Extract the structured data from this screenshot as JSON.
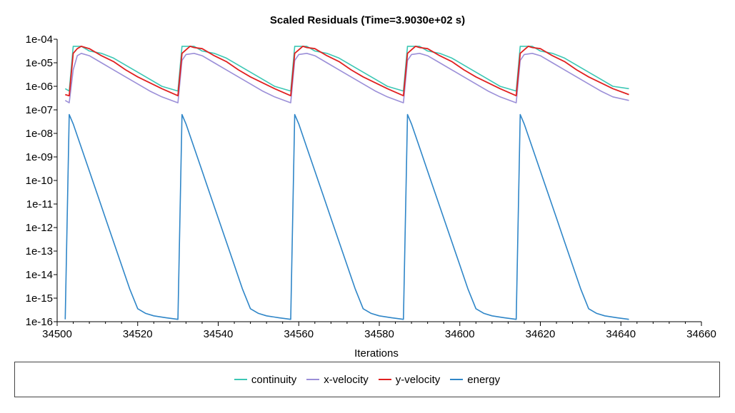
{
  "chart_data": {
    "type": "line",
    "title": "Scaled Residuals (Time=3.9030e+02 s)",
    "xlabel": "Iterations",
    "ylabel": "",
    "xlim": [
      34500,
      34660
    ],
    "ylim_exponent": [
      -16,
      -4
    ],
    "y_scale": "log",
    "x_ticks": [
      34500,
      34520,
      34540,
      34560,
      34580,
      34600,
      34620,
      34640,
      34660
    ],
    "y_ticks": [
      "1e-04",
      "1e-05",
      "1e-06",
      "1e-07",
      "1e-08",
      "1e-09",
      "1e-10",
      "1e-11",
      "1e-12",
      "1e-13",
      "1e-14",
      "1e-15",
      "1e-16"
    ],
    "grid": false,
    "legend_position": "bottom",
    "series": [
      {
        "name": "continuity",
        "color": "#3cc7b4",
        "points": [
          [
            34502,
            -6.1
          ],
          [
            34503,
            -6.2
          ],
          [
            34504,
            -4.3
          ],
          [
            34505,
            -4.3
          ],
          [
            34506,
            -4.3
          ],
          [
            34508,
            -4.5
          ],
          [
            34511,
            -4.6
          ],
          [
            34514,
            -4.8
          ],
          [
            34517,
            -5.1
          ],
          [
            34520,
            -5.4
          ],
          [
            34523,
            -5.7
          ],
          [
            34526,
            -6.0
          ],
          [
            34530,
            -6.2
          ],
          [
            34531,
            -4.3
          ],
          [
            34532,
            -4.3
          ],
          [
            34534,
            -4.3
          ],
          [
            34536,
            -4.5
          ],
          [
            34539,
            -4.6
          ],
          [
            34542,
            -4.8
          ],
          [
            34545,
            -5.1
          ],
          [
            34548,
            -5.4
          ],
          [
            34551,
            -5.7
          ],
          [
            34554,
            -6.0
          ],
          [
            34558,
            -6.2
          ],
          [
            34559,
            -4.3
          ],
          [
            34560,
            -4.3
          ],
          [
            34562,
            -4.3
          ],
          [
            34564,
            -4.5
          ],
          [
            34567,
            -4.6
          ],
          [
            34570,
            -4.8
          ],
          [
            34573,
            -5.1
          ],
          [
            34576,
            -5.4
          ],
          [
            34579,
            -5.7
          ],
          [
            34582,
            -6.0
          ],
          [
            34586,
            -6.2
          ],
          [
            34587,
            -4.3
          ],
          [
            34588,
            -4.3
          ],
          [
            34590,
            -4.3
          ],
          [
            34592,
            -4.5
          ],
          [
            34595,
            -4.6
          ],
          [
            34598,
            -4.8
          ],
          [
            34601,
            -5.1
          ],
          [
            34604,
            -5.4
          ],
          [
            34607,
            -5.7
          ],
          [
            34610,
            -6.0
          ],
          [
            34614,
            -6.2
          ],
          [
            34615,
            -4.3
          ],
          [
            34616,
            -4.3
          ],
          [
            34618,
            -4.3
          ],
          [
            34620,
            -4.5
          ],
          [
            34623,
            -4.6
          ],
          [
            34626,
            -4.8
          ],
          [
            34629,
            -5.1
          ],
          [
            34632,
            -5.4
          ],
          [
            34635,
            -5.7
          ],
          [
            34638,
            -6.0
          ],
          [
            34642,
            -6.1
          ]
        ]
      },
      {
        "name": "x-velocity",
        "color": "#9b8fd8",
        "points": [
          [
            34502,
            -6.6
          ],
          [
            34503,
            -6.7
          ],
          [
            34504,
            -5.3
          ],
          [
            34505,
            -4.7
          ],
          [
            34506,
            -4.6
          ],
          [
            34508,
            -4.7
          ],
          [
            34511,
            -5.0
          ],
          [
            34514,
            -5.3
          ],
          [
            34517,
            -5.6
          ],
          [
            34520,
            -5.9
          ],
          [
            34523,
            -6.2
          ],
          [
            34526,
            -6.45
          ],
          [
            34530,
            -6.7
          ],
          [
            34531,
            -4.9
          ],
          [
            34532,
            -4.65
          ],
          [
            34534,
            -4.6
          ],
          [
            34536,
            -4.7
          ],
          [
            34539,
            -5.0
          ],
          [
            34542,
            -5.3
          ],
          [
            34545,
            -5.6
          ],
          [
            34548,
            -5.9
          ],
          [
            34551,
            -6.2
          ],
          [
            34554,
            -6.45
          ],
          [
            34558,
            -6.7
          ],
          [
            34559,
            -4.9
          ],
          [
            34560,
            -4.65
          ],
          [
            34562,
            -4.6
          ],
          [
            34564,
            -4.7
          ],
          [
            34567,
            -5.0
          ],
          [
            34570,
            -5.3
          ],
          [
            34573,
            -5.6
          ],
          [
            34576,
            -5.9
          ],
          [
            34579,
            -6.2
          ],
          [
            34582,
            -6.45
          ],
          [
            34586,
            -6.7
          ],
          [
            34587,
            -4.9
          ],
          [
            34588,
            -4.65
          ],
          [
            34590,
            -4.6
          ],
          [
            34592,
            -4.7
          ],
          [
            34595,
            -5.0
          ],
          [
            34598,
            -5.3
          ],
          [
            34601,
            -5.6
          ],
          [
            34604,
            -5.9
          ],
          [
            34607,
            -6.2
          ],
          [
            34610,
            -6.45
          ],
          [
            34614,
            -6.7
          ],
          [
            34615,
            -4.9
          ],
          [
            34616,
            -4.65
          ],
          [
            34618,
            -4.6
          ],
          [
            34620,
            -4.7
          ],
          [
            34623,
            -5.0
          ],
          [
            34626,
            -5.3
          ],
          [
            34629,
            -5.6
          ],
          [
            34632,
            -5.9
          ],
          [
            34635,
            -6.2
          ],
          [
            34638,
            -6.45
          ],
          [
            34642,
            -6.6
          ]
        ]
      },
      {
        "name": "y-velocity",
        "color": "#e02020",
        "points": [
          [
            34502,
            -6.35
          ],
          [
            34503,
            -6.4
          ],
          [
            34504,
            -4.6
          ],
          [
            34505,
            -4.4
          ],
          [
            34506,
            -4.3
          ],
          [
            34507,
            -4.35
          ],
          [
            34508,
            -4.4
          ],
          [
            34511,
            -4.7
          ],
          [
            34514,
            -4.95
          ],
          [
            34517,
            -5.3
          ],
          [
            34520,
            -5.6
          ],
          [
            34523,
            -5.85
          ],
          [
            34526,
            -6.1
          ],
          [
            34530,
            -6.4
          ],
          [
            34531,
            -4.6
          ],
          [
            34532,
            -4.45
          ],
          [
            34533,
            -4.3
          ],
          [
            34534,
            -4.35
          ],
          [
            34536,
            -4.4
          ],
          [
            34539,
            -4.7
          ],
          [
            34542,
            -4.95
          ],
          [
            34545,
            -5.3
          ],
          [
            34548,
            -5.6
          ],
          [
            34551,
            -5.85
          ],
          [
            34554,
            -6.1
          ],
          [
            34558,
            -6.4
          ],
          [
            34559,
            -4.6
          ],
          [
            34560,
            -4.45
          ],
          [
            34561,
            -4.3
          ],
          [
            34562,
            -4.35
          ],
          [
            34564,
            -4.4
          ],
          [
            34567,
            -4.7
          ],
          [
            34570,
            -4.95
          ],
          [
            34573,
            -5.3
          ],
          [
            34576,
            -5.6
          ],
          [
            34579,
            -5.85
          ],
          [
            34582,
            -6.1
          ],
          [
            34586,
            -6.4
          ],
          [
            34587,
            -4.6
          ],
          [
            34588,
            -4.45
          ],
          [
            34589,
            -4.3
          ],
          [
            34590,
            -4.35
          ],
          [
            34592,
            -4.4
          ],
          [
            34595,
            -4.7
          ],
          [
            34598,
            -4.95
          ],
          [
            34601,
            -5.3
          ],
          [
            34604,
            -5.6
          ],
          [
            34607,
            -5.85
          ],
          [
            34610,
            -6.1
          ],
          [
            34614,
            -6.4
          ],
          [
            34615,
            -4.6
          ],
          [
            34616,
            -4.45
          ],
          [
            34617,
            -4.3
          ],
          [
            34618,
            -4.35
          ],
          [
            34620,
            -4.4
          ],
          [
            34623,
            -4.7
          ],
          [
            34626,
            -4.95
          ],
          [
            34629,
            -5.3
          ],
          [
            34632,
            -5.6
          ],
          [
            34635,
            -5.85
          ],
          [
            34638,
            -6.1
          ],
          [
            34642,
            -6.35
          ]
        ]
      },
      {
        "name": "energy",
        "color": "#2f86c8",
        "points": [
          [
            34502,
            -15.9
          ],
          [
            34503,
            -7.2
          ],
          [
            34504,
            -7.6
          ],
          [
            34506,
            -8.6
          ],
          [
            34508,
            -9.6
          ],
          [
            34510,
            -10.6
          ],
          [
            34512,
            -11.6
          ],
          [
            34514,
            -12.6
          ],
          [
            34516,
            -13.6
          ],
          [
            34518,
            -14.6
          ],
          [
            34520,
            -15.45
          ],
          [
            34522,
            -15.65
          ],
          [
            34524,
            -15.75
          ],
          [
            34527,
            -15.83
          ],
          [
            34530,
            -15.9
          ],
          [
            34531,
            -7.2
          ],
          [
            34532,
            -7.6
          ],
          [
            34534,
            -8.6
          ],
          [
            34536,
            -9.6
          ],
          [
            34538,
            -10.6
          ],
          [
            34540,
            -11.6
          ],
          [
            34542,
            -12.6
          ],
          [
            34544,
            -13.6
          ],
          [
            34546,
            -14.6
          ],
          [
            34548,
            -15.45
          ],
          [
            34550,
            -15.65
          ],
          [
            34552,
            -15.75
          ],
          [
            34555,
            -15.83
          ],
          [
            34558,
            -15.9
          ],
          [
            34559,
            -7.2
          ],
          [
            34560,
            -7.6
          ],
          [
            34562,
            -8.6
          ],
          [
            34564,
            -9.6
          ],
          [
            34566,
            -10.6
          ],
          [
            34568,
            -11.6
          ],
          [
            34570,
            -12.6
          ],
          [
            34572,
            -13.6
          ],
          [
            34574,
            -14.6
          ],
          [
            34576,
            -15.45
          ],
          [
            34578,
            -15.65
          ],
          [
            34580,
            -15.75
          ],
          [
            34583,
            -15.83
          ],
          [
            34586,
            -15.9
          ],
          [
            34587,
            -7.2
          ],
          [
            34588,
            -7.6
          ],
          [
            34590,
            -8.6
          ],
          [
            34592,
            -9.6
          ],
          [
            34594,
            -10.6
          ],
          [
            34596,
            -11.6
          ],
          [
            34598,
            -12.6
          ],
          [
            34600,
            -13.6
          ],
          [
            34602,
            -14.6
          ],
          [
            34604,
            -15.45
          ],
          [
            34606,
            -15.65
          ],
          [
            34608,
            -15.75
          ],
          [
            34611,
            -15.83
          ],
          [
            34614,
            -15.9
          ],
          [
            34615,
            -7.2
          ],
          [
            34616,
            -7.6
          ],
          [
            34618,
            -8.6
          ],
          [
            34620,
            -9.6
          ],
          [
            34622,
            -10.6
          ],
          [
            34624,
            -11.6
          ],
          [
            34626,
            -12.6
          ],
          [
            34628,
            -13.6
          ],
          [
            34630,
            -14.6
          ],
          [
            34632,
            -15.45
          ],
          [
            34634,
            -15.65
          ],
          [
            34636,
            -15.75
          ],
          [
            34639,
            -15.83
          ],
          [
            34642,
            -15.9
          ]
        ]
      }
    ]
  }
}
